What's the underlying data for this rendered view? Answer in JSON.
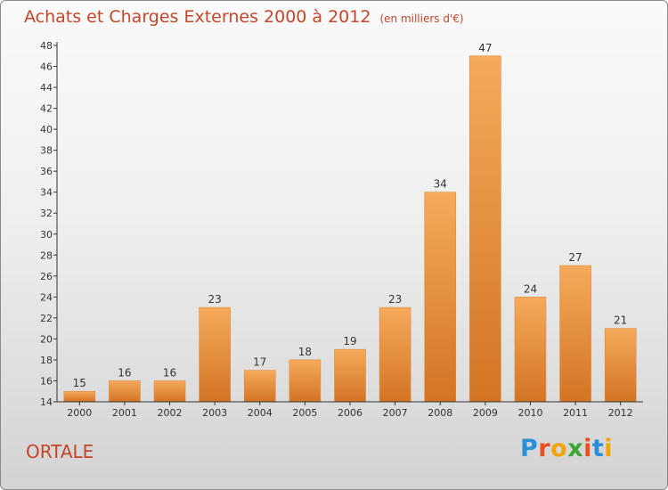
{
  "title": "Achats et Charges Externes 2000 à 2012",
  "unit_note": "(en milliers d'€)",
  "commune": "ORTALE",
  "logo": {
    "text": "Proxiti",
    "letter_colors": [
      "#2a8fd8",
      "#e8501e",
      "#f2a400",
      "#3aa535",
      "#e8501e",
      "#2a8fd8",
      "#f2a400"
    ]
  },
  "colors": {
    "bar_light": "#f6aa5c",
    "bar_dark": "#d27424",
    "axis": "#333333",
    "title": "#c2462a"
  },
  "chart_data": {
    "type": "bar",
    "categories": [
      "2000",
      "2001",
      "2002",
      "2003",
      "2004",
      "2005",
      "2006",
      "2007",
      "2008",
      "2009",
      "2010",
      "2011",
      "2012"
    ],
    "values": [
      15,
      16,
      16,
      23,
      17,
      18,
      19,
      23,
      34,
      47,
      24,
      27,
      21
    ],
    "ylim": [
      14,
      48
    ],
    "yticks": [
      14,
      16,
      18,
      20,
      22,
      24,
      26,
      28,
      30,
      32,
      34,
      36,
      38,
      40,
      42,
      44,
      46,
      48
    ],
    "data_labels": true,
    "grid": false
  }
}
